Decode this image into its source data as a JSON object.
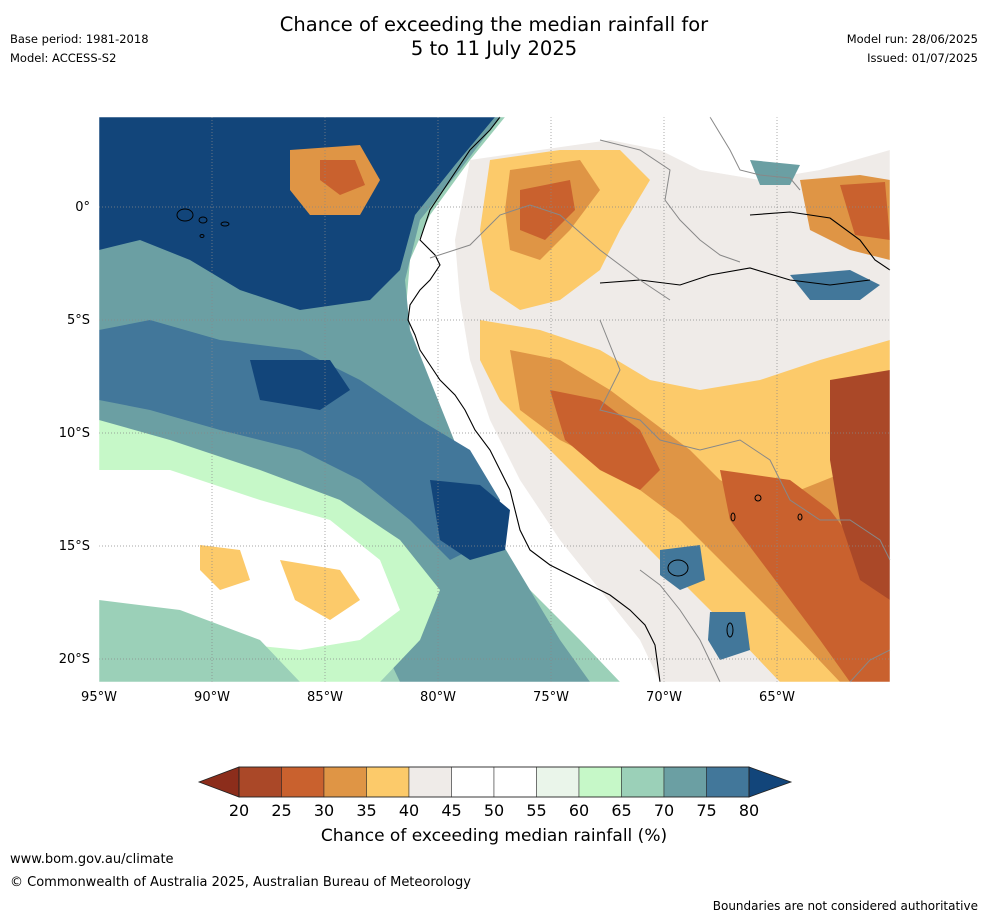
{
  "header": {
    "title_line1": "Chance of exceeding the median rainfall for",
    "title_line2": "5 to 11 July 2025",
    "base_period": "Base period: 1981-2018",
    "model": "Model: ACCESS-S2",
    "model_run": "Model run: 28/06/2025",
    "issued": "Issued: 01/07/2025"
  },
  "map": {
    "lat_labels": [
      "0°",
      "5°S",
      "10°S",
      "15°S",
      "20°S"
    ],
    "lon_labels": [
      "95°W",
      "90°W",
      "85°W",
      "80°W",
      "75°W",
      "70°W",
      "65°W"
    ]
  },
  "colorbar": {
    "label": "Chance of exceeding median rainfall (%)",
    "ticks": [
      "20",
      "25",
      "30",
      "35",
      "40",
      "45",
      "50",
      "55",
      "60",
      "65",
      "70",
      "75",
      "80"
    ],
    "low_color": "#8c2d1b",
    "high_color": "#12457a",
    "colors": [
      "#aa4828",
      "#c9612e",
      "#df9545",
      "#fcca6a",
      "#efebe8",
      "#ffffff",
      "#ffffff",
      "#eaf5ea",
      "#c6f8c8",
      "#9bd0b8",
      "#6b9fa3",
      "#42779a"
    ]
  },
  "footer": {
    "website": "www.bom.gov.au/climate",
    "copyright": "© Commonwealth of Australia 2025, Australian Bureau of Meteorology",
    "disclaimer": "Boundaries are not considered authoritative"
  }
}
